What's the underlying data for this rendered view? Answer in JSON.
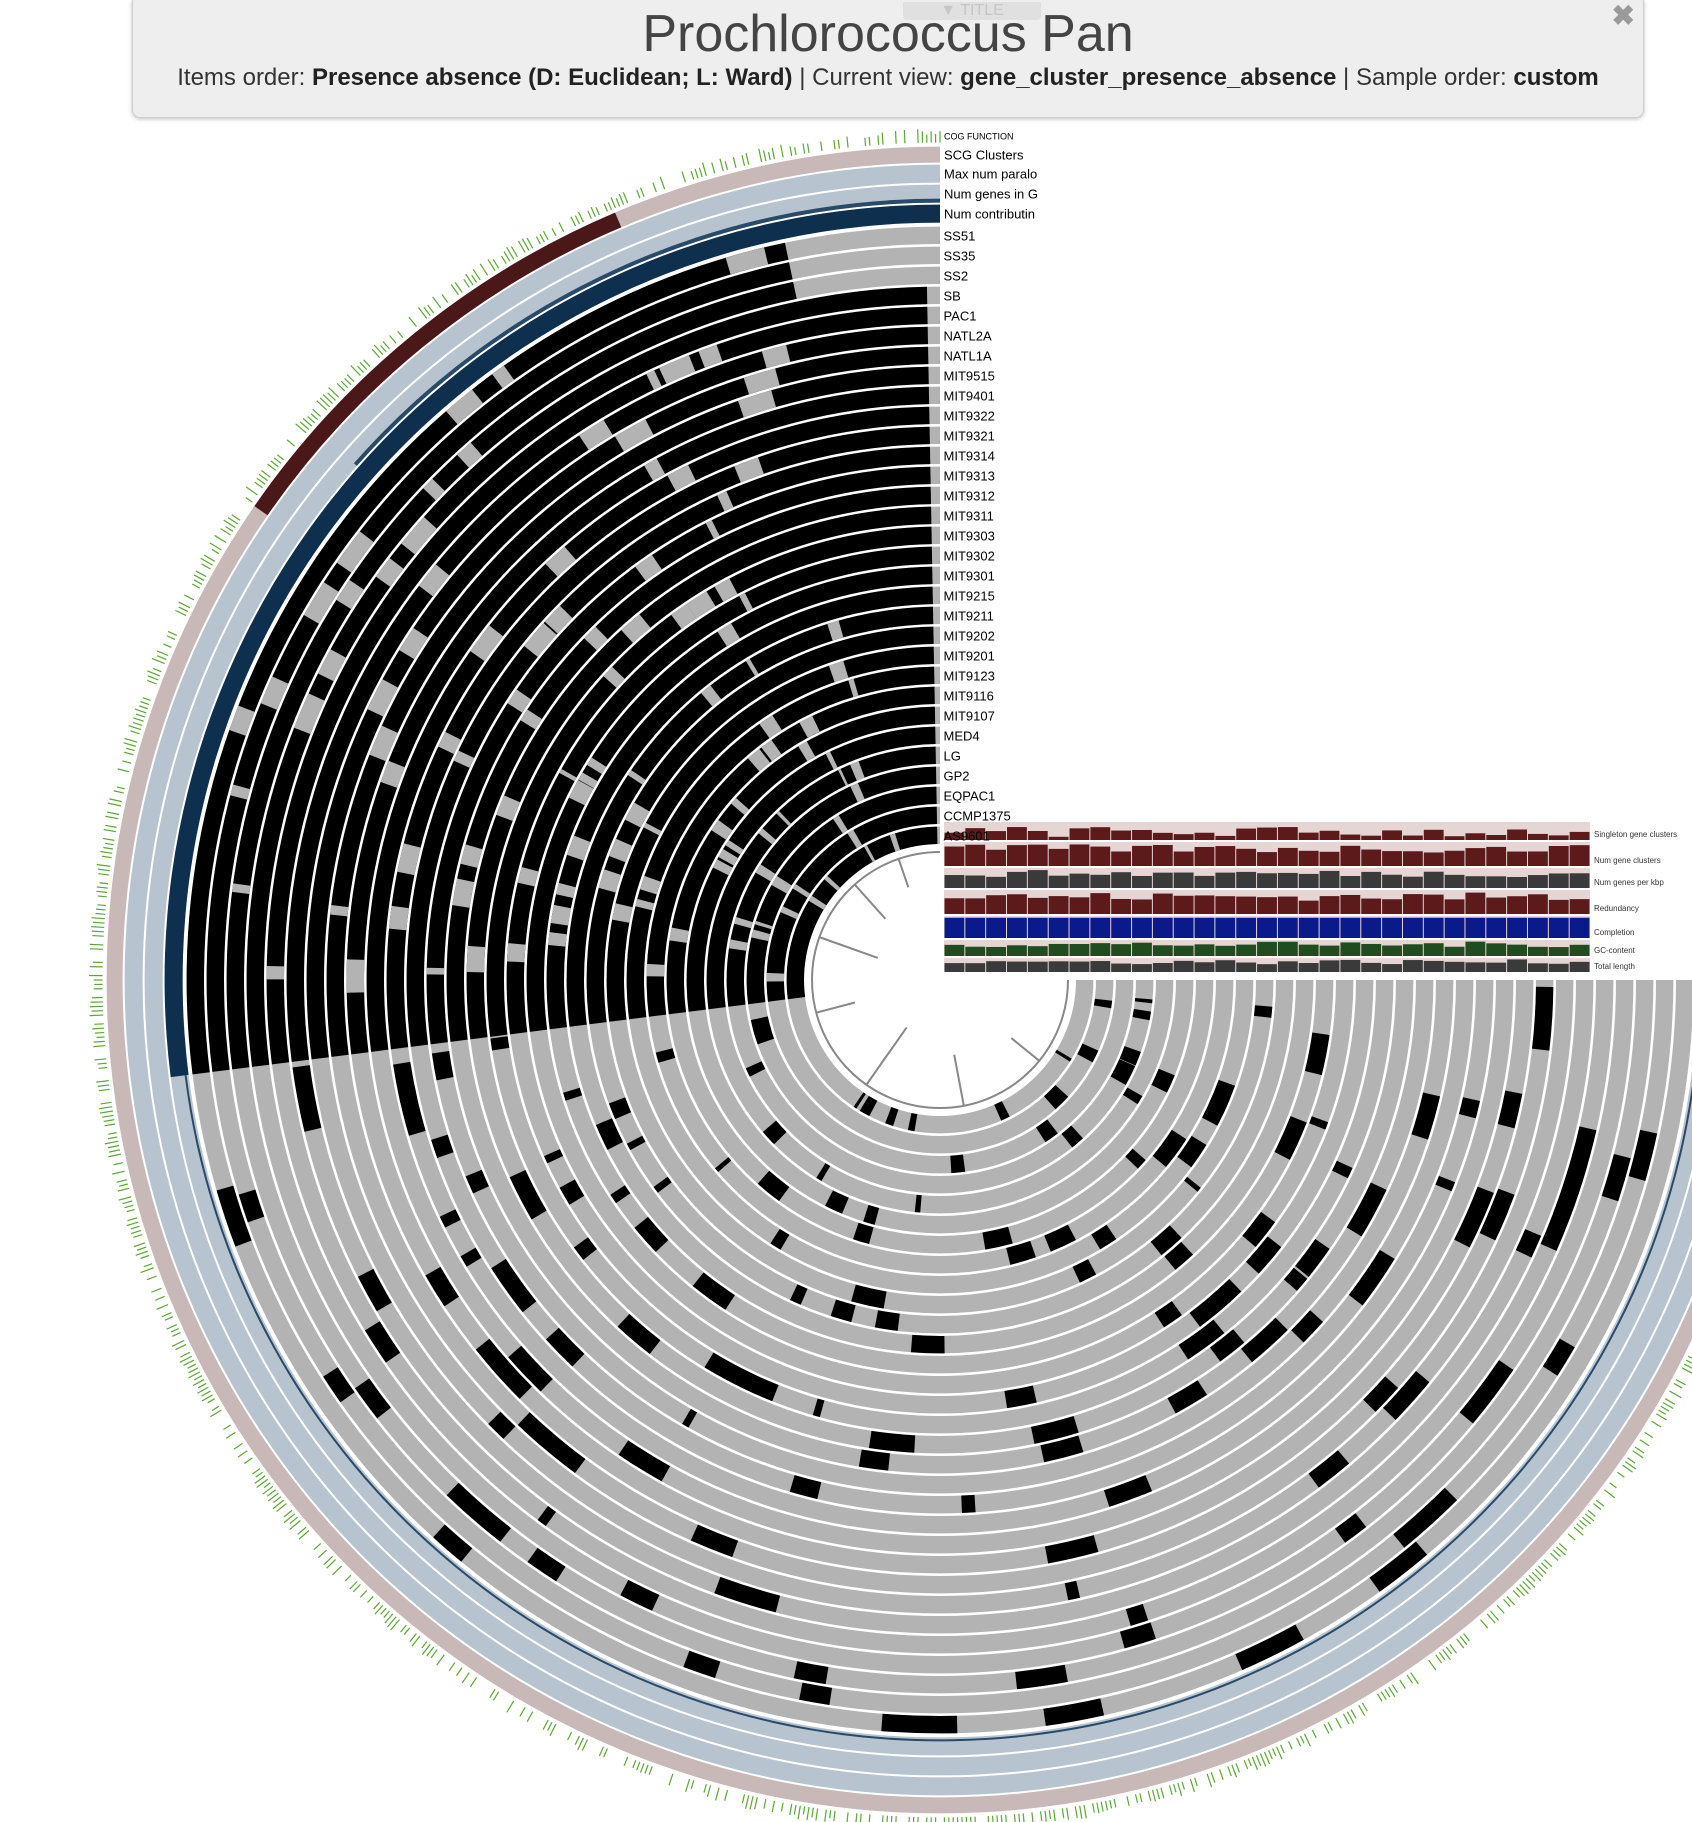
{
  "header": {
    "toggle_label": "▼ TITLE",
    "title": "Prochlorococcus Pan",
    "items_order_label": "Items order: ",
    "items_order_value": "Presence absence (D: Euclidean; L: Ward)",
    "view_label": " | Current view: ",
    "view_value": "gene_cluster_presence_absence",
    "sample_order_label": " | Sample order: ",
    "sample_order_value": "custom",
    "close_icon": "✖"
  },
  "layers_top": [
    "COG FUNCTION",
    "SCG Clusters",
    "Max num paralo",
    "Num genes in G",
    "Num contributin"
  ],
  "genomes": [
    "SS51",
    "SS35",
    "SS2",
    "SB",
    "PAC1",
    "NATL2A",
    "NATL1A",
    "MIT9515",
    "MIT9401",
    "MIT9322",
    "MIT9321",
    "MIT9314",
    "MIT9313",
    "MIT9312",
    "MIT9311",
    "MIT9303",
    "MIT9302",
    "MIT9301",
    "MIT9215",
    "MIT9211",
    "MIT9202",
    "MIT9201",
    "MIT9123",
    "MIT9116",
    "MIT9107",
    "MED4",
    "LG",
    "GP2",
    "EQPAC1",
    "CCMP1375",
    "AS9601"
  ],
  "layer_colors": {
    "cog": "#5aa832",
    "scg_bg": "#c9b8b8",
    "scg_fill": "#4a1818",
    "max_para": "#b7c4cf",
    "num_genes": "#b7c4cf",
    "num_contrib_bg": "#b7c4cf",
    "num_contrib_fill": "#0f2f4f",
    "absent": "#b3b3b3",
    "present": "#000000",
    "tree": "#888888",
    "bar_bg": "#e6d5d5"
  },
  "sample_layers": [
    {
      "label": "Singleton gene clusters",
      "color": "#5c1a1a"
    },
    {
      "label": "Num gene clusters",
      "color": "#5c1a1a"
    },
    {
      "label": "Num genes per kbp",
      "color": "#3a3a3a"
    },
    {
      "label": "Redundancy",
      "color": "#5c1a1a"
    },
    {
      "label": "Completion",
      "color": "#0a1a8a"
    },
    {
      "label": "GC-content",
      "color": "#1f4d1f"
    },
    {
      "label": "Total length",
      "color": "#3a3a3a"
    }
  ]
}
